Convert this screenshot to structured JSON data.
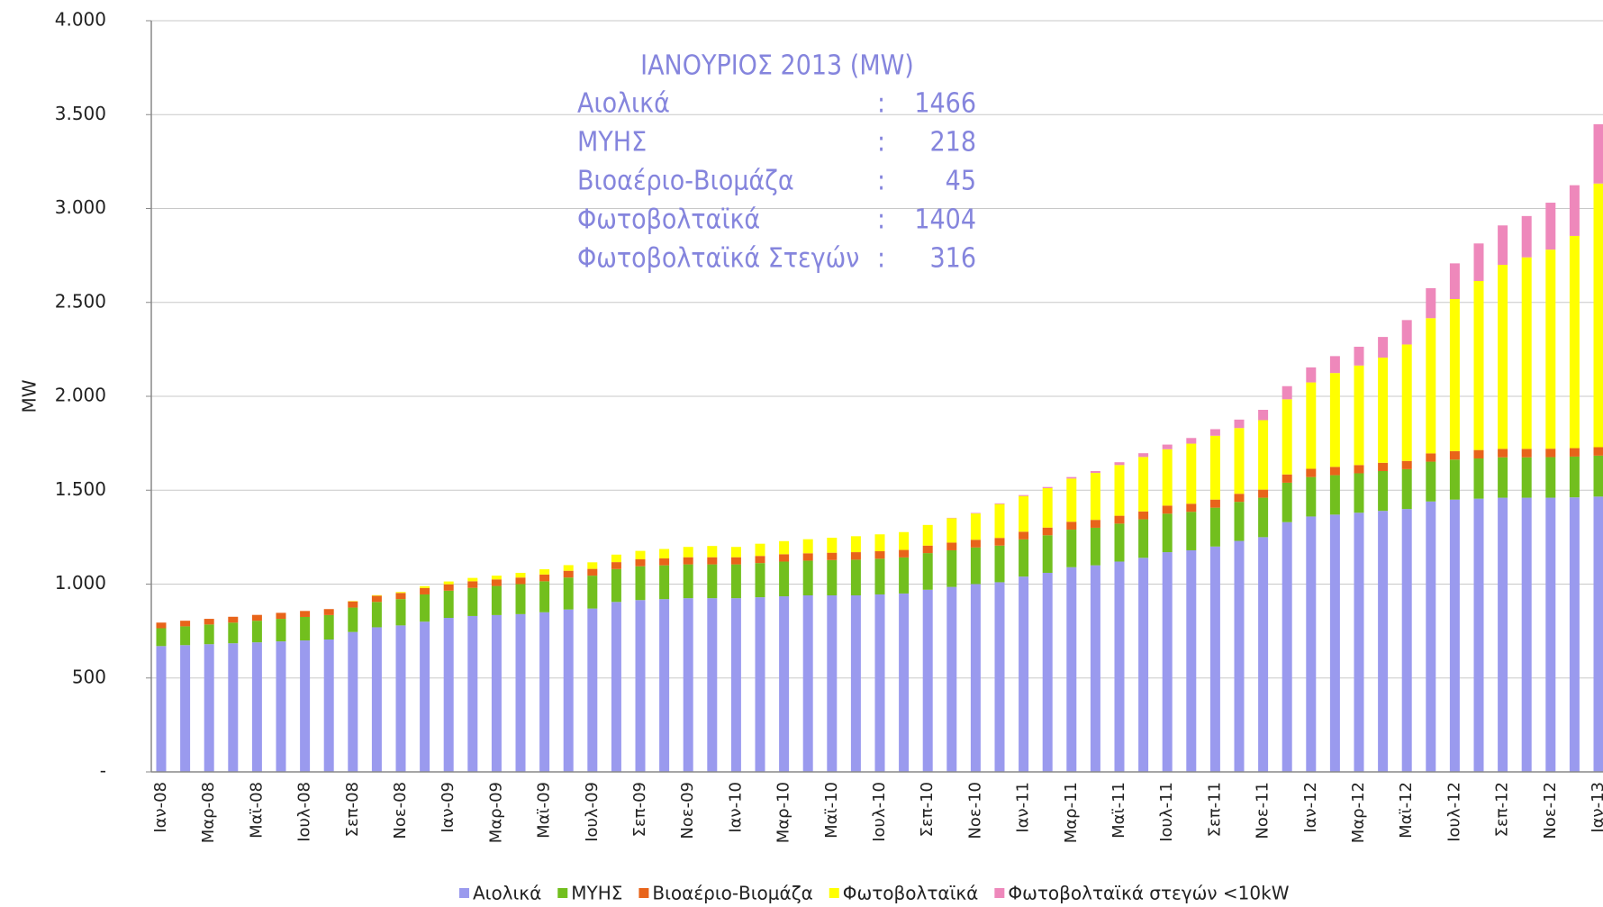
{
  "chart_data": {
    "type": "stacked_bar",
    "y_label": "MW",
    "annotation": {
      "title": "ΙΑΝΟΥΡΙΟΣ 2013 (MW)",
      "rows": [
        {
          "label": "Αιολικά",
          "value": "1466"
        },
        {
          "label": "ΜΥΗΣ",
          "value": "218"
        },
        {
          "label": "Βιοαέριο-Βιομάζα",
          "value": "45"
        },
        {
          "label": "Φωτοβολταϊκά",
          "value": "1404"
        },
        {
          "label": "Φωτοβολταϊκά Στεγών",
          "value": "316"
        }
      ]
    },
    "categories": [
      "Ιαν-08",
      null,
      "Μαρ-08",
      null,
      "Μαϊ-08",
      null,
      "Ιουλ-08",
      null,
      "Σεπ-08",
      null,
      "Νοε-08",
      null,
      "Ιαν-09",
      null,
      "Μαρ-09",
      null,
      "Μαϊ-09",
      null,
      "Ιουλ-09",
      null,
      "Σεπ-09",
      null,
      "Νοε-09",
      null,
      "Ιαν-10",
      null,
      "Μαρ-10",
      null,
      "Μαϊ-10",
      null,
      "Ιουλ-10",
      null,
      "Σεπ-10",
      null,
      "Νοε-10",
      null,
      "Ιαν-11",
      null,
      "Μαρ-11",
      null,
      "Μαϊ-11",
      null,
      "Ιουλ-11",
      null,
      "Σεπ-11",
      null,
      "Νοε-11",
      null,
      "Ιαν-12",
      null,
      "Μαρ-12",
      null,
      "Μαϊ-12",
      null,
      "Ιουλ-12",
      null,
      "Σεπ-12",
      null,
      "Νοε-12",
      null,
      "Ιαν-13"
    ],
    "series": [
      {
        "name": "Αιολικά",
        "color": "#9a9aee",
        "values": [
          670,
          675,
          680,
          685,
          690,
          695,
          700,
          705,
          745,
          770,
          780,
          800,
          820,
          830,
          835,
          840,
          850,
          865,
          870,
          905,
          915,
          920,
          925,
          925,
          925,
          930,
          935,
          940,
          940,
          940,
          945,
          950,
          970,
          985,
          1000,
          1010,
          1040,
          1060,
          1090,
          1100,
          1120,
          1140,
          1170,
          1180,
          1200,
          1230,
          1250,
          1330,
          1360,
          1370,
          1380,
          1390,
          1400,
          1440,
          1450,
          1455,
          1460,
          1460,
          1460,
          1462,
          1466
        ]
      },
      {
        "name": "ΜΥΗΣ",
        "color": "#72bf1e",
        "values": [
          95,
          100,
          105,
          110,
          115,
          120,
          125,
          130,
          130,
          135,
          140,
          145,
          145,
          150,
          155,
          160,
          165,
          170,
          175,
          175,
          180,
          180,
          180,
          180,
          180,
          182,
          185,
          185,
          188,
          190,
          190,
          192,
          195,
          195,
          195,
          195,
          198,
          200,
          200,
          200,
          202,
          205,
          205,
          205,
          207,
          208,
          210,
          210,
          210,
          210,
          210,
          212,
          212,
          212,
          213,
          214,
          215,
          215,
          216,
          217,
          218
        ]
      },
      {
        "name": "Βιοαέριο-Βιομάζα",
        "color": "#e8641a",
        "values": [
          30,
          30,
          30,
          31,
          31,
          32,
          32,
          32,
          33,
          33,
          33,
          34,
          34,
          35,
          35,
          35,
          36,
          36,
          36,
          37,
          37,
          37,
          38,
          38,
          38,
          38,
          39,
          39,
          39,
          40,
          40,
          40,
          40,
          41,
          41,
          41,
          41,
          41,
          42,
          42,
          42,
          42,
          43,
          43,
          43,
          43,
          43,
          44,
          44,
          44,
          44,
          44,
          44,
          44,
          45,
          45,
          45,
          45,
          45,
          45,
          45
        ]
      },
      {
        "name": "Φωτοβολταϊκά",
        "color": "#ffff00",
        "values": [
          0,
          0,
          0,
          0,
          0,
          0,
          0,
          0,
          2,
          3,
          5,
          10,
          15,
          18,
          20,
          25,
          28,
          30,
          35,
          40,
          45,
          50,
          55,
          60,
          55,
          65,
          70,
          75,
          80,
          85,
          90,
          95,
          110,
          130,
          140,
          180,
          190,
          210,
          230,
          250,
          270,
          290,
          300,
          320,
          340,
          350,
          370,
          400,
          460,
          500,
          530,
          560,
          620,
          720,
          810,
          900,
          980,
          1020,
          1060,
          1130,
          1404
        ]
      },
      {
        "name": "Φωτοβολταϊκά στεγών <10kW",
        "color": "#ee88bb",
        "values": [
          0,
          0,
          0,
          0,
          0,
          0,
          0,
          0,
          0,
          0,
          0,
          0,
          0,
          0,
          0,
          0,
          0,
          0,
          0,
          0,
          0,
          0,
          0,
          0,
          0,
          0,
          0,
          0,
          0,
          0,
          0,
          0,
          0,
          2,
          3,
          4,
          5,
          6,
          8,
          10,
          15,
          20,
          25,
          30,
          35,
          45,
          55,
          70,
          80,
          90,
          100,
          110,
          130,
          160,
          190,
          200,
          210,
          220,
          250,
          270,
          316
        ]
      }
    ],
    "ylim": [
      0,
      4000
    ],
    "yticks": [
      {
        "value": 0,
        "label": "-"
      },
      500,
      {
        "value": 1000,
        "label": "1.000"
      },
      {
        "value": 1500,
        "label": "1.500"
      },
      {
        "value": 2000,
        "label": "2.000"
      },
      {
        "value": 2500,
        "label": "2.500"
      },
      {
        "value": 3000,
        "label": "3.000"
      },
      {
        "value": 3500,
        "label": "3.500"
      },
      {
        "value": 4000,
        "label": "4.000"
      }
    ],
    "grid": true
  }
}
